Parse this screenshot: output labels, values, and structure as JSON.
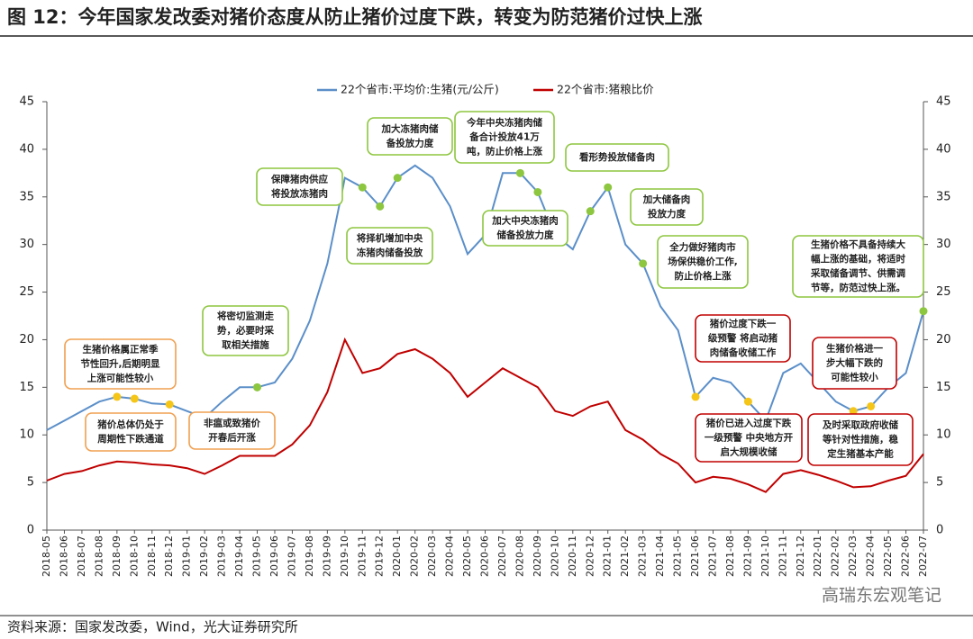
{
  "chart_data": {
    "type": "line",
    "title": "图 12：今年国家发改委对猪价态度从防止猪价过度下跌，转变为防范猪价过快上涨",
    "source": "资料来源：国家发改委，Wind，光大证券研究所",
    "watermark": "高瑞东宏观笔记",
    "categories": [
      "2018-05",
      "2018-06",
      "2018-07",
      "2018-08",
      "2018-09",
      "2018-10",
      "2018-11",
      "2018-12",
      "2019-01",
      "2019-02",
      "2019-03",
      "2019-04",
      "2019-05",
      "2019-06",
      "2019-07",
      "2019-08",
      "2019-09",
      "2019-10",
      "2019-11",
      "2019-12",
      "2020-01",
      "2020-02",
      "2020-03",
      "2020-04",
      "2020-05",
      "2020-06",
      "2020-07",
      "2020-08",
      "2020-09",
      "2020-10",
      "2020-11",
      "2020-12",
      "2021-01",
      "2021-02",
      "2021-03",
      "2021-04",
      "2021-05",
      "2021-06",
      "2021-07",
      "2021-08",
      "2021-09",
      "2021-10",
      "2021-11",
      "2021-12",
      "2022-01",
      "2022-02",
      "2022-03",
      "2022-04",
      "2022-05",
      "2022-06",
      "2022-07"
    ],
    "series": [
      {
        "name": "22个省市:平均价:生猪(元/公斤)",
        "color": "#5b8fc9",
        "values": [
          10.5,
          11.5,
          12.5,
          13.5,
          14.0,
          13.8,
          13.3,
          13.2,
          12.5,
          11.8,
          13.5,
          15.0,
          15.0,
          15.5,
          18.0,
          22.0,
          28.0,
          37.0,
          36.0,
          34.0,
          37.0,
          38.3,
          37.0,
          34.0,
          29.0,
          31.0,
          37.5,
          37.5,
          35.5,
          31.0,
          29.5,
          33.5,
          36.0,
          30.0,
          28.0,
          23.5,
          21.0,
          14.0,
          16.0,
          15.5,
          13.5,
          11.5,
          16.5,
          17.5,
          15.5,
          13.5,
          12.5,
          13.0,
          15.0,
          16.5,
          23.0
        ]
      },
      {
        "name": "22个省市:猪粮比价",
        "color": "#c00000",
        "axis": "y2",
        "values": [
          5.2,
          5.9,
          6.2,
          6.8,
          7.2,
          7.1,
          6.9,
          6.8,
          6.5,
          5.9,
          6.8,
          7.8,
          7.8,
          7.8,
          9.0,
          11.0,
          14.5,
          20.0,
          16.5,
          17.0,
          18.5,
          19.0,
          18.0,
          16.5,
          14.0,
          15.5,
          17.0,
          16.0,
          15.0,
          12.5,
          12.0,
          13.0,
          13.5,
          10.5,
          9.5,
          8.0,
          7.0,
          5.0,
          5.6,
          5.4,
          4.8,
          4.0,
          5.9,
          6.3,
          5.8,
          5.2,
          4.5,
          4.6,
          5.2,
          5.7,
          8.0
        ]
      }
    ],
    "ylim": [
      0,
      45
    ],
    "yticks": [
      0,
      5,
      10,
      15,
      20,
      25,
      30,
      35,
      40,
      45
    ],
    "y2lim": [
      0,
      45
    ],
    "y2ticks": [
      0,
      5,
      10,
      15,
      20,
      25,
      30,
      35,
      40,
      45
    ],
    "grid": false,
    "legend": "top",
    "annotations": [
      {
        "lines": [
          "生猪价格属正常季",
          "节性回升,后期明显",
          "上涨可能性较小"
        ],
        "border": "#f0a050",
        "marker": "#f5c518"
      },
      {
        "lines": [
          "猪价总体仍处于",
          "周期性下跌通道"
        ],
        "border": "#f0a050",
        "marker": "#f5c518"
      },
      {
        "lines": [
          "非瘟或致猪价",
          "开春后开涨"
        ],
        "border": "#f0a050",
        "marker": "#f5c518"
      },
      {
        "lines": [
          "将密切监测走",
          "势，必要时采",
          "取相关措施"
        ],
        "border": "#8dc63f",
        "marker": "#8dc63f"
      },
      {
        "lines": [
          "保障猪肉供应",
          "将投放冻猪肉"
        ],
        "border": "#8dc63f",
        "marker": "#8dc63f"
      },
      {
        "lines": [
          "将择机增加中央",
          "冻猪肉储备投放"
        ],
        "border": "#8dc63f",
        "marker": "#8dc63f"
      },
      {
        "lines": [
          "加大冻猪肉储",
          "备投放力度"
        ],
        "border": "#8dc63f",
        "marker": "#8dc63f"
      },
      {
        "lines": [
          "今年中央冻猪肉储",
          "备合计投放41万",
          "吨，防止价格上涨"
        ],
        "border": "#8dc63f",
        "marker": "#8dc63f"
      },
      {
        "lines": [
          "加大中央冻猪肉",
          "储备投放力度"
        ],
        "border": "#8dc63f",
        "marker": "#8dc63f"
      },
      {
        "lines": [
          "看形势投放储备肉"
        ],
        "border": "#8dc63f",
        "marker": "#8dc63f"
      },
      {
        "lines": [
          "加大储备肉",
          "投放力度"
        ],
        "border": "#8dc63f",
        "marker": "#8dc63f"
      },
      {
        "lines": [
          "全力做好猪肉市",
          "场保供稳价工作,",
          "防止价格上涨"
        ],
        "border": "#8dc63f",
        "marker": "#8dc63f"
      },
      {
        "lines": [
          "猪价过度下跌一",
          "级预警 将启动猪",
          "肉储备收储工作"
        ],
        "border": "#c00000",
        "marker": "#f5c518"
      },
      {
        "lines": [
          "猪价已进入过度下跌",
          "一级预警 中央地方开",
          "启大规模收储"
        ],
        "border": "#c00000",
        "marker": "#f5c518"
      },
      {
        "lines": [
          "生猪价格不具备持续大",
          "幅上涨的基础，将适时",
          "采取储备调节、供需调",
          "节等，防范过快上涨。"
        ],
        "border": "#8dc63f",
        "marker": "#8dc63f"
      },
      {
        "lines": [
          "生猪价格进一",
          "步大幅下跌的",
          "可能性较小"
        ],
        "border": "#c00000",
        "marker": "#f5c518"
      },
      {
        "lines": [
          "及时采取政府收储",
          "等针对性措施，稳",
          "定生猪基本产能"
        ],
        "border": "#c00000",
        "marker": "#f5c518"
      }
    ]
  }
}
